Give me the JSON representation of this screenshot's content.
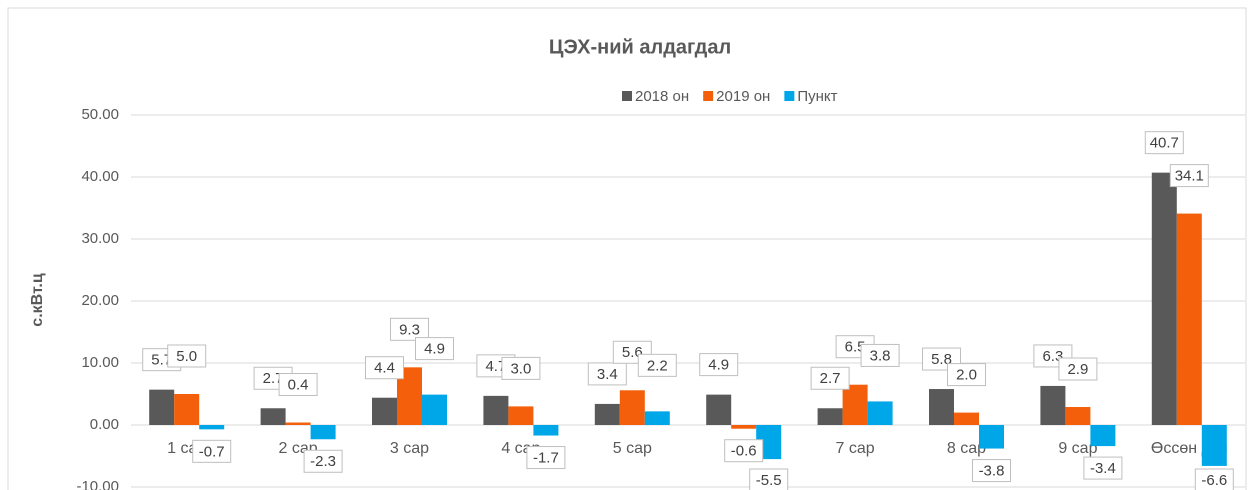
{
  "chart_data": {
    "type": "bar",
    "title": "ЦЭХ-ний алдагдал",
    "y_label": "с.кВт.ц",
    "categories": [
      "1 сар",
      "2 сар",
      "3 сар",
      "4 сар",
      "5 сар",
      "6 сар",
      "7 сар",
      "8 сар",
      "9 сар",
      "Өссөн дүн"
    ],
    "series": [
      {
        "name": "2018 он",
        "color": "#595959",
        "values": [
          5.7,
          2.7,
          4.4,
          4.7,
          3.4,
          4.9,
          2.7,
          5.8,
          6.3,
          40.7
        ]
      },
      {
        "name": "2019 он",
        "color": "#F35F0A",
        "values": [
          5.0,
          0.4,
          9.3,
          3.0,
          5.6,
          -0.6,
          6.5,
          2.0,
          2.9,
          34.1
        ]
      },
      {
        "name": "Пункт",
        "color": "#00A7E8",
        "values": [
          -0.7,
          -2.3,
          4.9,
          -1.7,
          2.2,
          -5.5,
          3.8,
          -3.8,
          -3.4,
          -6.6
        ]
      }
    ],
    "ylim": [
      -10,
      50
    ],
    "yticks": [
      {
        "value": -10,
        "label": "-10.00"
      },
      {
        "value": 0,
        "label": "0.00"
      },
      {
        "value": 10,
        "label": "10.00"
      },
      {
        "value": 20,
        "label": "20.00"
      },
      {
        "value": 30,
        "label": "30.00"
      },
      {
        "value": 40,
        "label": "40.00"
      },
      {
        "value": 50,
        "label": "50.00"
      }
    ],
    "grid": true,
    "legend": "top"
  }
}
